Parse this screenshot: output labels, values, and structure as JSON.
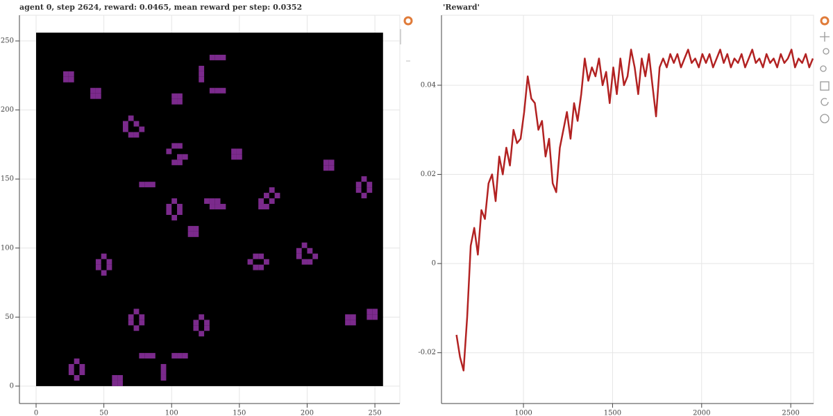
{
  "chart_data": [
    {
      "type": "image",
      "title": "agent 0, step 2624, reward: 0.0465, mean reward per step: 0.0352",
      "background": "#000000",
      "color": "#7b2a8c",
      "xlim": [
        -12.3,
        268.4
      ],
      "ylim": [
        -12.6,
        268.6
      ],
      "xticks": [
        0,
        50,
        100,
        150,
        200,
        250
      ],
      "yticks": [
        0,
        50,
        100,
        150,
        200,
        250
      ],
      "grid": true,
      "cells": [
        [
          20,
          220
        ],
        [
          24,
          220
        ],
        [
          20,
          224
        ],
        [
          24,
          224
        ],
        [
          40,
          208
        ],
        [
          44,
          208
        ],
        [
          40,
          212
        ],
        [
          44,
          212
        ],
        [
          100,
          204
        ],
        [
          104,
          204
        ],
        [
          100,
          208
        ],
        [
          104,
          208
        ],
        [
          144,
          164
        ],
        [
          148,
          164
        ],
        [
          144,
          168
        ],
        [
          148,
          168
        ],
        [
          212,
          156
        ],
        [
          216,
          156
        ],
        [
          212,
          160
        ],
        [
          216,
          160
        ],
        [
          112,
          108
        ],
        [
          116,
          108
        ],
        [
          112,
          112
        ],
        [
          116,
          112
        ],
        [
          228,
          44
        ],
        [
          232,
          44
        ],
        [
          228,
          48
        ],
        [
          232,
          48
        ],
        [
          244,
          48
        ],
        [
          248,
          48
        ],
        [
          244,
          52
        ],
        [
          248,
          52
        ],
        [
          56,
          0
        ],
        [
          60,
          0
        ],
        [
          56,
          4
        ],
        [
          60,
          4
        ],
        [
          128,
          236
        ],
        [
          132,
          236
        ],
        [
          136,
          236
        ],
        [
          120,
          220
        ],
        [
          120,
          224
        ],
        [
          120,
          228
        ],
        [
          128,
          212
        ],
        [
          132,
          212
        ],
        [
          136,
          212
        ],
        [
          68,
          192
        ],
        [
          64,
          188
        ],
        [
          72,
          188
        ],
        [
          64,
          184
        ],
        [
          76,
          184
        ],
        [
          68,
          180
        ],
        [
          72,
          180
        ],
        [
          100,
          172
        ],
        [
          104,
          172
        ],
        [
          96,
          168
        ],
        [
          104,
          164
        ],
        [
          108,
          164
        ],
        [
          100,
          160
        ],
        [
          104,
          160
        ],
        [
          76,
          144
        ],
        [
          80,
          144
        ],
        [
          84,
          144
        ],
        [
          100,
          132
        ],
        [
          96,
          128
        ],
        [
          104,
          128
        ],
        [
          96,
          124
        ],
        [
          104,
          124
        ],
        [
          100,
          120
        ],
        [
          124,
          132
        ],
        [
          128,
          132
        ],
        [
          132,
          132
        ],
        [
          128,
          128
        ],
        [
          132,
          128
        ],
        [
          136,
          128
        ],
        [
          172,
          140
        ],
        [
          168,
          136
        ],
        [
          176,
          136
        ],
        [
          164,
          132
        ],
        [
          172,
          132
        ],
        [
          164,
          128
        ],
        [
          168,
          128
        ],
        [
          240,
          148
        ],
        [
          236,
          144
        ],
        [
          244,
          144
        ],
        [
          236,
          140
        ],
        [
          244,
          140
        ],
        [
          240,
          136
        ],
        [
          48,
          92
        ],
        [
          44,
          88
        ],
        [
          52,
          88
        ],
        [
          44,
          84
        ],
        [
          52,
          84
        ],
        [
          48,
          80
        ],
        [
          160,
          92
        ],
        [
          164,
          92
        ],
        [
          156,
          88
        ],
        [
          168,
          88
        ],
        [
          160,
          84
        ],
        [
          164,
          84
        ],
        [
          196,
          100
        ],
        [
          192,
          96
        ],
        [
          200,
          96
        ],
        [
          192,
          92
        ],
        [
          204,
          92
        ],
        [
          196,
          88
        ],
        [
          200,
          88
        ],
        [
          72,
          52
        ],
        [
          68,
          48
        ],
        [
          76,
          48
        ],
        [
          68,
          44
        ],
        [
          76,
          44
        ],
        [
          72,
          40
        ],
        [
          120,
          48
        ],
        [
          116,
          44
        ],
        [
          124,
          44
        ],
        [
          116,
          40
        ],
        [
          124,
          40
        ],
        [
          120,
          36
        ],
        [
          28,
          16
        ],
        [
          24,
          12
        ],
        [
          32,
          12
        ],
        [
          24,
          8
        ],
        [
          32,
          8
        ],
        [
          28,
          4
        ],
        [
          76,
          20
        ],
        [
          80,
          20
        ],
        [
          84,
          20
        ],
        [
          100,
          20
        ],
        [
          104,
          20
        ],
        [
          108,
          20
        ],
        [
          92,
          4
        ],
        [
          92,
          8
        ],
        [
          92,
          12
        ]
      ]
    },
    {
      "type": "line",
      "title": "'Reward'",
      "color": "#b22222",
      "xlim": [
        540,
        2628
      ],
      "ylim": [
        -0.0314,
        0.0557
      ],
      "xticks": [
        1000,
        1500,
        2000,
        2500
      ],
      "yticks": [
        -0.02,
        0,
        0.02,
        0.04
      ],
      "grid": true,
      "x": [
        624,
        644,
        664,
        684,
        704,
        724,
        744,
        764,
        784,
        804,
        824,
        844,
        864,
        884,
        904,
        924,
        944,
        964,
        984,
        1004,
        1024,
        1044,
        1064,
        1084,
        1104,
        1124,
        1144,
        1164,
        1184,
        1204,
        1224,
        1244,
        1264,
        1284,
        1304,
        1324,
        1344,
        1364,
        1384,
        1404,
        1424,
        1444,
        1464,
        1484,
        1504,
        1524,
        1544,
        1564,
        1584,
        1604,
        1624,
        1644,
        1664,
        1684,
        1704,
        1724,
        1744,
        1764,
        1784,
        1804,
        1824,
        1844,
        1864,
        1884,
        1904,
        1924,
        1944,
        1964,
        1984,
        2004,
        2024,
        2044,
        2064,
        2084,
        2104,
        2124,
        2144,
        2164,
        2184,
        2204,
        2224,
        2244,
        2264,
        2284,
        2304,
        2324,
        2344,
        2364,
        2384,
        2404,
        2424,
        2444,
        2464,
        2484,
        2504,
        2524,
        2544,
        2564,
        2584,
        2604,
        2624
      ],
      "values": [
        -0.016,
        -0.021,
        -0.024,
        -0.012,
        0.004,
        0.008,
        0.002,
        0.012,
        0.01,
        0.018,
        0.02,
        0.014,
        0.024,
        0.02,
        0.026,
        0.022,
        0.03,
        0.027,
        0.028,
        0.034,
        0.042,
        0.037,
        0.036,
        0.03,
        0.032,
        0.024,
        0.028,
        0.018,
        0.016,
        0.026,
        0.03,
        0.034,
        0.028,
        0.036,
        0.032,
        0.038,
        0.046,
        0.041,
        0.044,
        0.042,
        0.046,
        0.04,
        0.043,
        0.036,
        0.044,
        0.038,
        0.046,
        0.04,
        0.042,
        0.048,
        0.044,
        0.038,
        0.046,
        0.042,
        0.047,
        0.04,
        0.033,
        0.044,
        0.046,
        0.044,
        0.047,
        0.045,
        0.047,
        0.044,
        0.046,
        0.048,
        0.045,
        0.046,
        0.044,
        0.047,
        0.045,
        0.047,
        0.044,
        0.046,
        0.048,
        0.045,
        0.047,
        0.044,
        0.046,
        0.045,
        0.047,
        0.044,
        0.046,
        0.048,
        0.045,
        0.046,
        0.044,
        0.047,
        0.045,
        0.046,
        0.044,
        0.047,
        0.045,
        0.046,
        0.048,
        0.044,
        0.046,
        0.045,
        0.047,
        0.044,
        0.046
      ]
    }
  ]
}
